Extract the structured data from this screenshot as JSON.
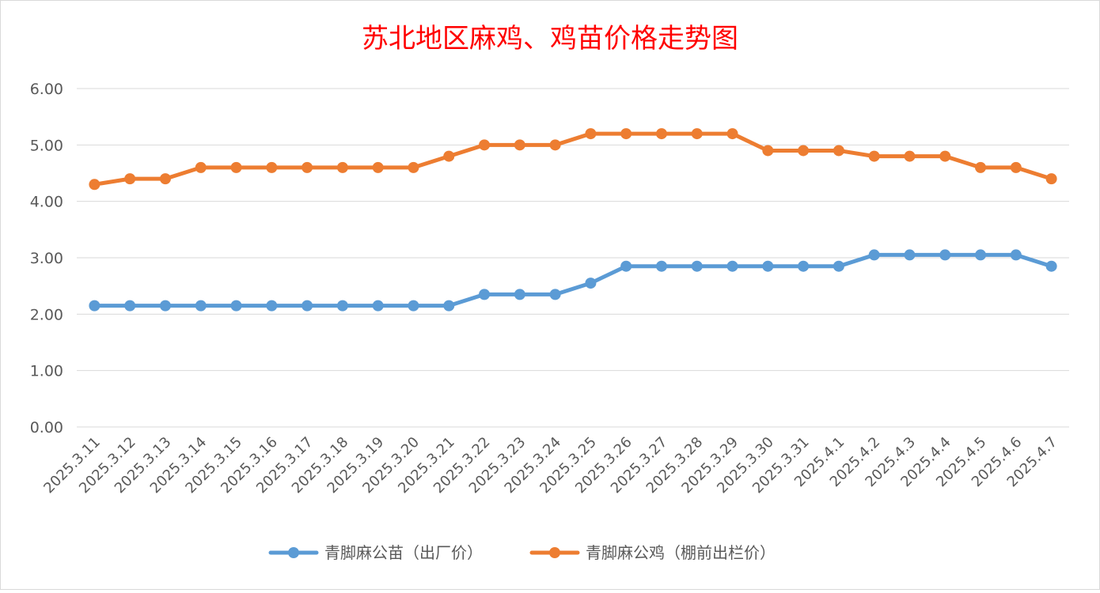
{
  "chart_data": {
    "type": "line",
    "title": "苏北地区麻鸡、鸡苗价格走势图",
    "categories": [
      "2025.3.11",
      "2025.3.12",
      "2025.3.13",
      "2025.3.14",
      "2025.3.15",
      "2025.3.16",
      "2025.3.17",
      "2025.3.18",
      "2025.3.19",
      "2025.3.20",
      "2025.3.21",
      "2025.3.22",
      "2025.3.23",
      "2025.3.24",
      "2025.3.25",
      "2025.3.26",
      "2025.3.27",
      "2025.3.28",
      "2025.3.29",
      "2025.3.30",
      "2025.3.31",
      "2025.4.1",
      "2025.4.2",
      "2025.4.3",
      "2025.4.4",
      "2025.4.5",
      "2025.4.6",
      "2025.4.7"
    ],
    "series": [
      {
        "name": "青脚麻公苗（出厂价）",
        "color": "#5b9bd5",
        "values": [
          2.15,
          2.15,
          2.15,
          2.15,
          2.15,
          2.15,
          2.15,
          2.15,
          2.15,
          2.15,
          2.15,
          2.35,
          2.35,
          2.35,
          2.55,
          2.85,
          2.85,
          2.85,
          2.85,
          2.85,
          2.85,
          2.85,
          3.05,
          3.05,
          3.05,
          3.05,
          3.05,
          2.85
        ]
      },
      {
        "name": "青脚麻公鸡（棚前出栏价）",
        "color": "#ed7d31",
        "values": [
          4.3,
          4.4,
          4.4,
          4.6,
          4.6,
          4.6,
          4.6,
          4.6,
          4.6,
          4.6,
          4.8,
          5.0,
          5.0,
          5.0,
          5.2,
          5.2,
          5.2,
          5.2,
          5.2,
          4.9,
          4.9,
          4.9,
          4.8,
          4.8,
          4.8,
          4.6,
          4.6,
          4.4
        ]
      }
    ],
    "yticks": [
      "0.00",
      "1.00",
      "2.00",
      "3.00",
      "4.00",
      "5.00",
      "6.00"
    ],
    "ylim": [
      0,
      6
    ],
    "grid": true,
    "legend_position": "bottom"
  }
}
